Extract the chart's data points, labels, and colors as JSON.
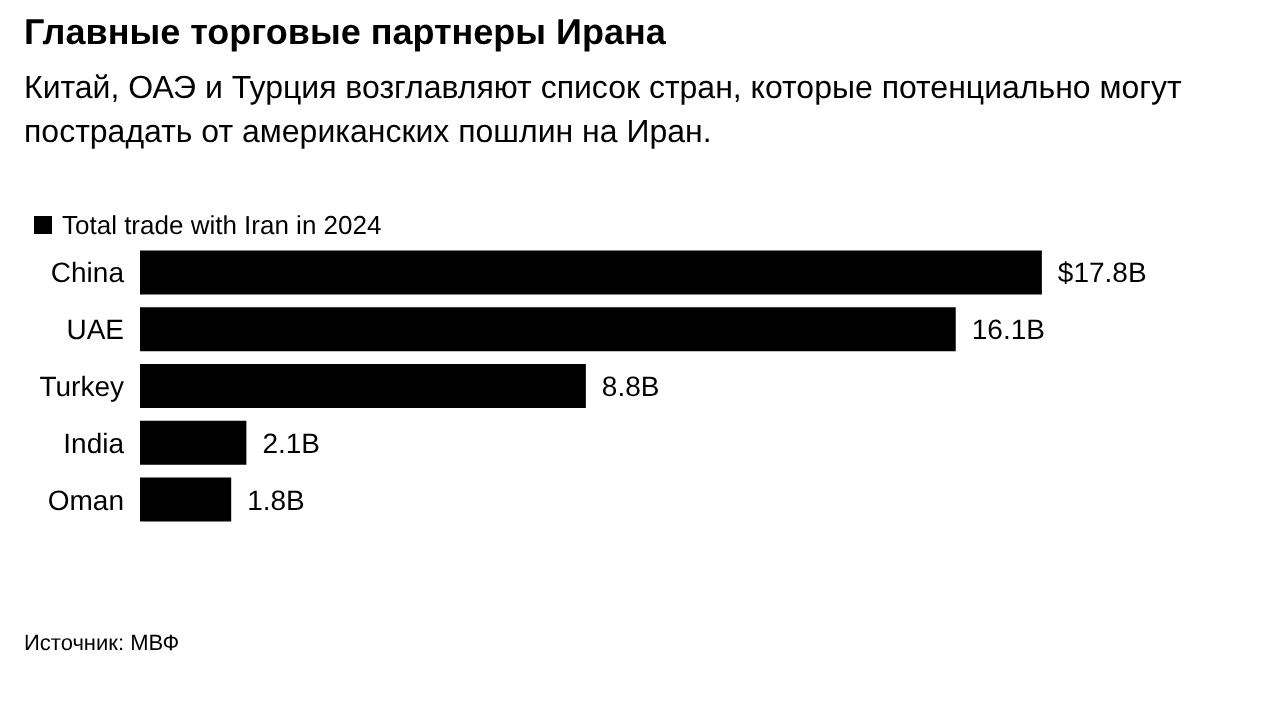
{
  "chart_data": {
    "type": "bar",
    "orientation": "horizontal",
    "title": "Главные торговые партнеры Ирана",
    "subtitle": "Китай, ОАЭ и Турция возглавляют список стран, которые потенциально могут пострадать от американских пошлин на Иран.",
    "categories": [
      "China",
      "UAE",
      "Turkey",
      "India",
      "Oman"
    ],
    "series": [
      {
        "name": "Total trade with Iran in 2024",
        "color": "#000000",
        "values": [
          17.8,
          16.1,
          8.8,
          2.1,
          1.8
        ],
        "value_labels": [
          "$17.8B",
          "16.1B",
          "8.8B",
          "2.1B",
          "1.8B"
        ]
      }
    ],
    "legend": "top left",
    "annotations": [
      "Источник: МВФ"
    ]
  }
}
